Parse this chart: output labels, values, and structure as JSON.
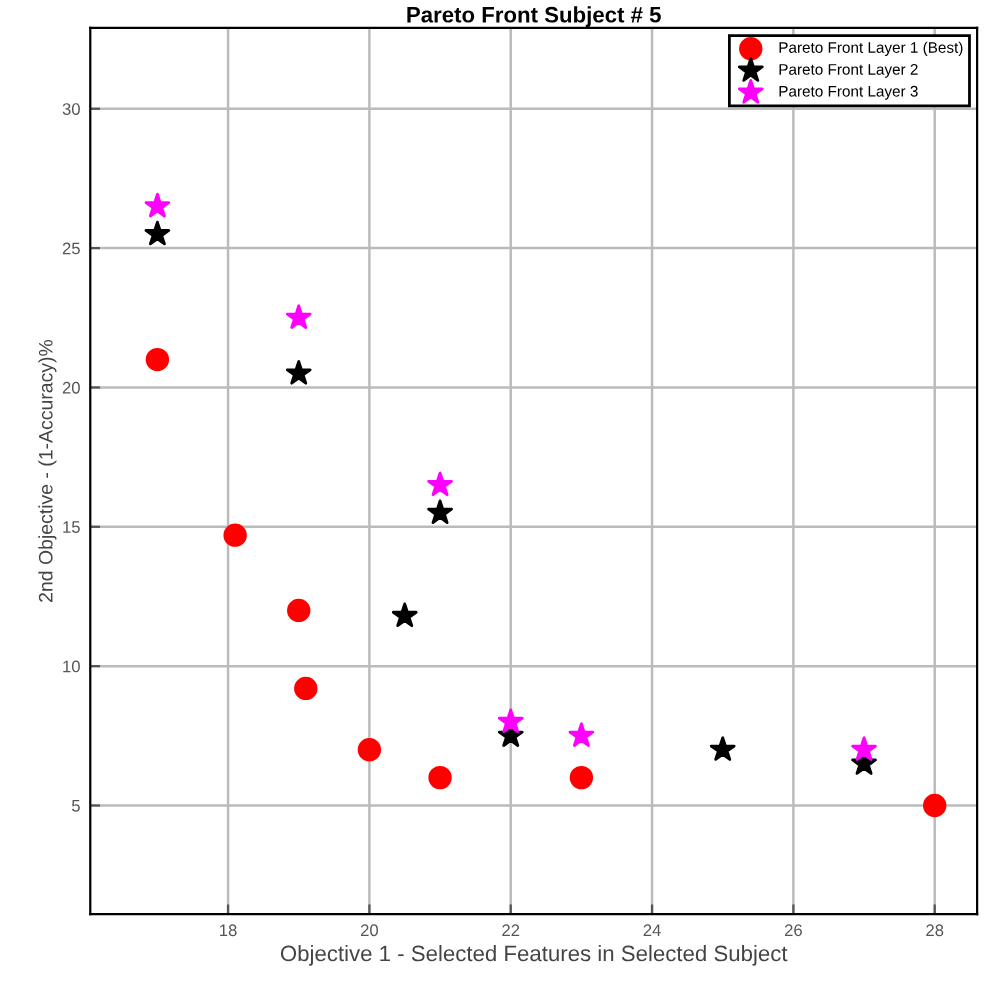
{
  "chart_data": {
    "type": "scatter",
    "title": "Pareto Front Subject # 5",
    "xlabel": "Objective 1 - Selected Features in Selected Subject",
    "ylabel": "2nd Objective - (1-Accuracy)%",
    "xlim": [
      16.05,
      28.6
    ],
    "ylim": [
      1.1,
      32.9
    ],
    "xticks": [
      18,
      20,
      22,
      24,
      26,
      28
    ],
    "yticks": [
      5,
      10,
      15,
      20,
      25,
      30
    ],
    "grid": true,
    "legend": "top right",
    "series": [
      {
        "name": "Pareto Front Layer 1 (Best)",
        "color": "#ff0000",
        "marker": "circle",
        "x": [
          17,
          18.1,
          19,
          19.1,
          20,
          21,
          23,
          28
        ],
        "values": [
          21,
          14.7,
          12,
          9.2,
          7,
          6,
          6,
          5
        ]
      },
      {
        "name": "Pareto Front Layer 2",
        "color": "#000000",
        "marker": "star",
        "x": [
          17,
          19,
          21,
          20.5,
          22,
          25,
          27
        ],
        "values": [
          25.5,
          20.5,
          15.5,
          11.8,
          7.5,
          7,
          6.5
        ]
      },
      {
        "name": "Pareto Front Layer 3",
        "color": "#ff00ff",
        "marker": "star",
        "x": [
          17,
          19,
          21,
          22,
          23,
          27
        ],
        "values": [
          26.5,
          22.5,
          16.5,
          8,
          7.5,
          7
        ]
      }
    ]
  }
}
